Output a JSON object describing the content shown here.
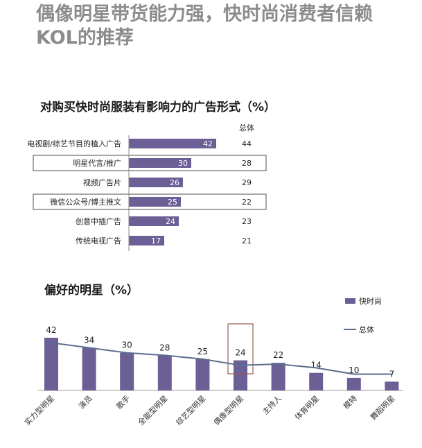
{
  "headline": "偶像明星带货能力强，快时尚消费者信赖KOL的推荐",
  "chart_data": [
    {
      "type": "bar",
      "orientation": "horizontal",
      "title": "对购买快时尚服装有影响力的广告形式（%）",
      "column_header": "总体",
      "categories": [
        "电视剧/综艺节目的植入广告",
        "明星代言/推广",
        "视频广告片",
        "微信公众号/博主推文",
        "创意中插广告",
        "传统电视广告"
      ],
      "series": [
        {
          "name": "快时尚",
          "values": [
            42,
            30,
            26,
            25,
            24,
            17
          ]
        },
        {
          "name": "总体",
          "values": [
            44,
            28,
            29,
            22,
            23,
            21
          ]
        }
      ],
      "highlighted": [
        "明星代言/推广",
        "微信公众号/博主推文"
      ],
      "color": "#6b5f96"
    },
    {
      "type": "bar",
      "title": "偏好的明星（%）",
      "categories": [
        "实力型明星",
        "演员",
        "歌手",
        "全能型明星",
        "综艺型明星",
        "偶像型明星",
        "主持人",
        "体育明星",
        "模特",
        "舞蹈明星"
      ],
      "series": [
        {
          "name": "快时尚",
          "type": "bar",
          "values": [
            42,
            34,
            30,
            28,
            25,
            24,
            22,
            14,
            10,
            7
          ]
        },
        {
          "name": "总体",
          "type": "line",
          "values": [
            38,
            34,
            30,
            28,
            25,
            20,
            21,
            18,
            13,
            13
          ]
        }
      ],
      "highlighted": [
        "偶像型明星"
      ],
      "legend": "top-right",
      "color": "#6b5f96",
      "line_color": "#5a6e8c"
    }
  ]
}
